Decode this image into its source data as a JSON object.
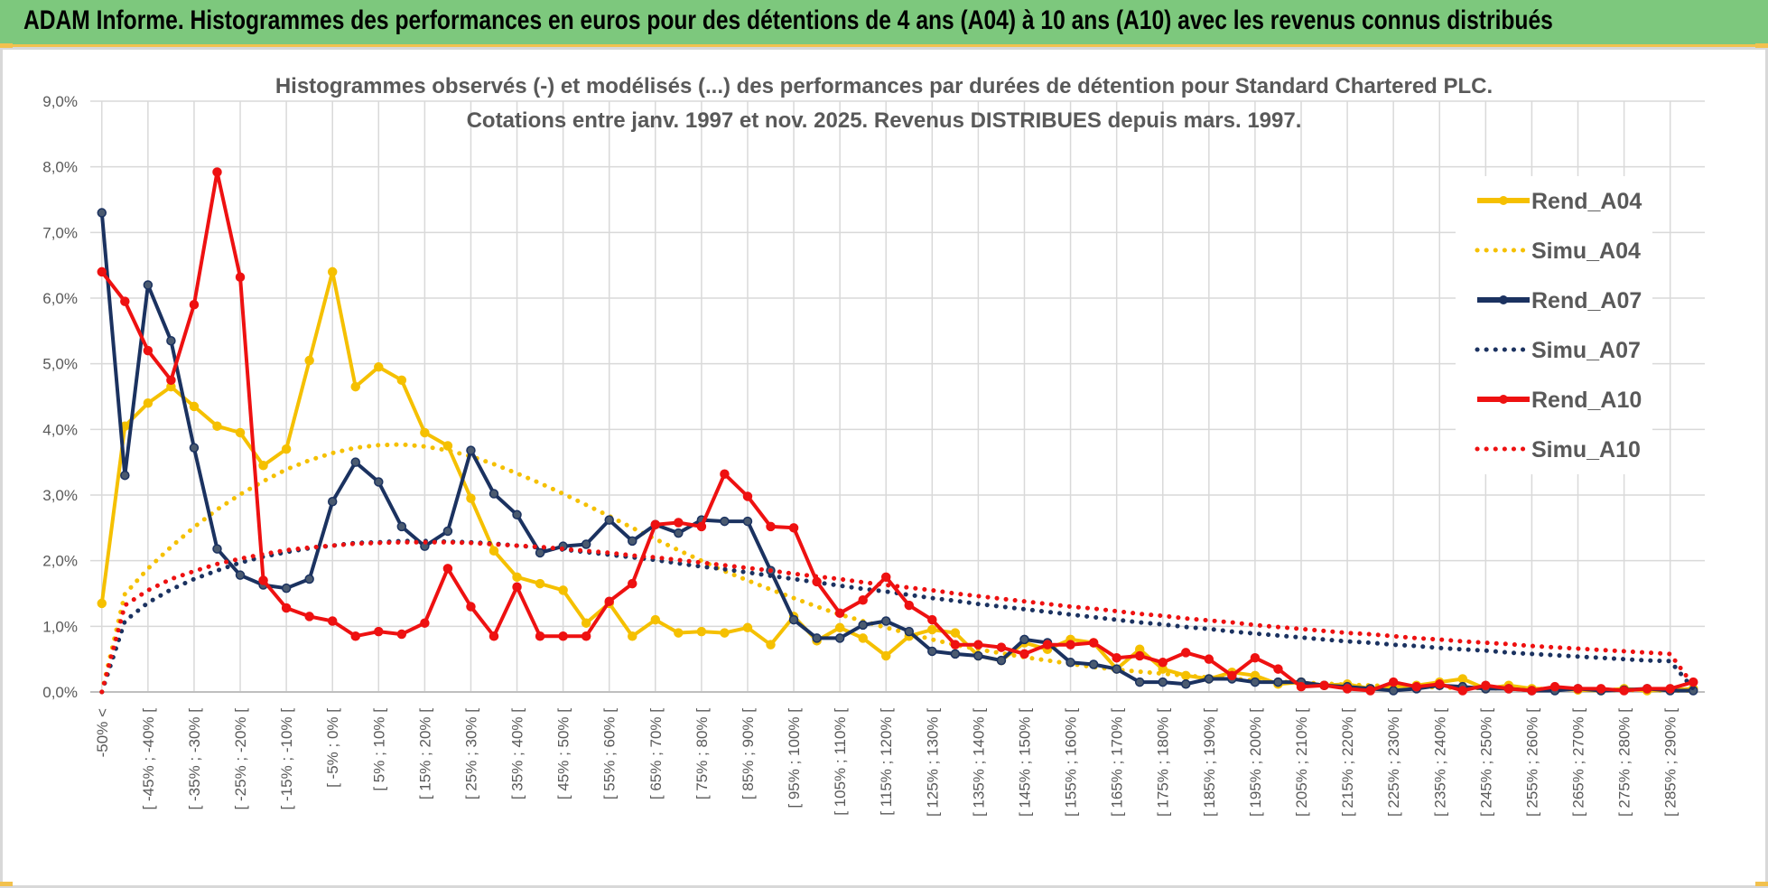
{
  "banner": {
    "title": "ADAM Informe. Histogrammes des performances en euros pour des détentions de 4 ans (A04) à 10 ans (A10) avec les revenus connus distribués"
  },
  "colors": {
    "banner_bg": "#7dc87d",
    "accent": "#f2c14e",
    "a04": "#f5c000",
    "a07": "#1b3260",
    "a10": "#ee1111",
    "grid": "#d9d9d9",
    "text": "#595959"
  },
  "chart_data": {
    "type": "line",
    "title_line1": "Histogrammes observés (-) et modélisés (...) des performances par durées de détention pour Standard Chartered PLC.",
    "title_line2": "Cotations entre janv. 1997 et nov. 2025. Revenus DISTRIBUES depuis mars. 1997.",
    "ylim": [
      0,
      9
    ],
    "yticks": [
      "0,0%",
      "1,0%",
      "2,0%",
      "3,0%",
      "4,0%",
      "5,0%",
      "6,0%",
      "7,0%",
      "8,0%",
      "9,0%"
    ],
    "x_count": 70,
    "xtick_labels": [
      "-50% <",
      "[ -45% ; -40% [",
      "[ -35% ; -30% [",
      "[ -25% ; -20% [",
      "[ -15% ; -10% [",
      "[ -5% ; 0% [",
      "[ 5% ; 10% [",
      "[ 15% ; 20% [",
      "[ 25% ; 30% [",
      "[ 35% ; 40% [",
      "[ 45% ; 50% [",
      "[ 55% ; 60% [",
      "[ 65% ; 70% [",
      "[ 75% ; 80% [",
      "[ 85% ; 90% [",
      "[ 95% ; 100% [",
      "[ 105% ; 110% [",
      "[ 115% ; 120% [",
      "[ 125% ; 130% [",
      "[ 135% ; 140% [",
      "[ 145% ; 150% [",
      "[ 155% ; 160% [",
      "[ 165% ; 170% [",
      "[ 175% ; 180% [",
      "[ 185% ; 190% [",
      "[ 195% ; 200% [",
      "[ 205% ; 210% [",
      "[ 215% ; 220% [",
      "[ 225% ; 230% [",
      "[ 235% ; 240% [",
      "[ 245% ; 250% [",
      "[ 255% ; 260% [",
      "[ 265% ; 270% [",
      "[ 275% ; 280% [",
      "[ 285% ; 290% ["
    ],
    "series": [
      {
        "name": "Rend_A04",
        "style": "solid",
        "color": "#f5c000",
        "values": [
          1.35,
          4.05,
          4.4,
          4.65,
          4.35,
          4.05,
          3.95,
          3.45,
          3.7,
          5.05,
          6.4,
          4.65,
          4.95,
          4.75,
          3.95,
          3.75,
          2.95,
          2.15,
          1.75,
          1.65,
          1.55,
          1.05,
          1.35,
          0.85,
          1.1,
          0.9,
          0.92,
          0.9,
          0.98,
          0.72,
          1.15,
          0.78,
          0.98,
          0.82,
          0.55,
          0.85,
          0.95,
          0.9,
          0.55,
          0.48,
          0.75,
          0.65,
          0.8,
          0.75,
          0.35,
          0.65,
          0.35,
          0.25,
          0.2,
          0.3,
          0.25,
          0.12,
          0.15,
          0.1,
          0.12,
          0.05,
          0.08,
          0.1,
          0.15,
          0.2,
          0.05,
          0.1,
          0.05,
          0.05,
          0.03,
          0.02,
          0.05,
          0.02,
          0.03,
          0.05
        ]
      },
      {
        "name": "Simu_A04",
        "style": "dotted",
        "color": "#f5c000",
        "values": [
          0.0,
          1.49,
          1.88,
          2.21,
          2.51,
          2.78,
          3.01,
          3.21,
          3.39,
          3.53,
          3.64,
          3.72,
          3.76,
          3.77,
          3.74,
          3.68,
          3.59,
          3.47,
          3.33,
          3.18,
          3.02,
          2.85,
          2.68,
          2.5,
          2.33,
          2.16,
          2.0,
          1.84,
          1.7,
          1.56,
          1.43,
          1.3,
          1.18,
          1.08,
          0.98,
          0.89,
          0.8,
          0.72,
          0.65,
          0.59,
          0.53,
          0.48,
          0.43,
          0.38,
          0.34,
          0.31,
          0.28,
          0.25,
          0.22,
          0.2,
          0.18,
          0.16,
          0.14,
          0.13,
          0.11,
          0.1,
          0.09,
          0.08,
          0.07,
          0.06,
          0.06,
          0.05,
          0.05,
          0.04,
          0.04,
          0.03,
          0.03,
          0.03,
          0.02,
          0.02
        ]
      },
      {
        "name": "Rend_A07",
        "style": "solid",
        "color": "#1b3260",
        "values": [
          7.3,
          3.3,
          6.2,
          5.35,
          3.72,
          2.18,
          1.78,
          1.63,
          1.58,
          1.72,
          2.9,
          3.5,
          3.2,
          2.52,
          2.22,
          2.45,
          3.68,
          3.02,
          2.7,
          2.12,
          2.22,
          2.25,
          2.62,
          2.3,
          2.55,
          2.42,
          2.62,
          2.6,
          2.6,
          1.85,
          1.1,
          0.82,
          0.82,
          1.02,
          1.08,
          0.92,
          0.62,
          0.58,
          0.55,
          0.48,
          0.8,
          0.75,
          0.45,
          0.42,
          0.35,
          0.15,
          0.15,
          0.12,
          0.2,
          0.2,
          0.15,
          0.15,
          0.15,
          0.1,
          0.08,
          0.05,
          0.02,
          0.05,
          0.1,
          0.08,
          0.05,
          0.05,
          0.02,
          0.02,
          0.05,
          0.02,
          0.03,
          0.05,
          0.02,
          0.02
        ]
      },
      {
        "name": "Simu_A07",
        "style": "dotted",
        "color": "#1b3260",
        "values": [
          0.0,
          1.08,
          1.36,
          1.56,
          1.72,
          1.85,
          1.97,
          2.06,
          2.13,
          2.19,
          2.23,
          2.27,
          2.28,
          2.3,
          2.3,
          2.29,
          2.28,
          2.26,
          2.23,
          2.2,
          2.17,
          2.13,
          2.09,
          2.05,
          2.01,
          1.96,
          1.91,
          1.87,
          1.82,
          1.77,
          1.72,
          1.67,
          1.62,
          1.57,
          1.53,
          1.48,
          1.43,
          1.39,
          1.34,
          1.3,
          1.26,
          1.22,
          1.18,
          1.14,
          1.1,
          1.06,
          1.03,
          0.99,
          0.96,
          0.92,
          0.89,
          0.86,
          0.83,
          0.8,
          0.77,
          0.75,
          0.72,
          0.7,
          0.67,
          0.65,
          0.63,
          0.6,
          0.58,
          0.56,
          0.54,
          0.52,
          0.5,
          0.48,
          0.47,
          0.05
        ]
      },
      {
        "name": "Rend_A10",
        "style": "solid",
        "color": "#ee1111",
        "values": [
          6.4,
          5.95,
          5.2,
          4.75,
          5.9,
          7.92,
          6.32,
          1.7,
          1.28,
          1.15,
          1.08,
          0.85,
          0.92,
          0.88,
          1.05,
          1.88,
          1.3,
          0.85,
          1.6,
          0.85,
          0.85,
          0.85,
          1.38,
          1.65,
          2.55,
          2.58,
          2.52,
          3.32,
          2.98,
          2.52,
          2.5,
          1.68,
          1.2,
          1.4,
          1.75,
          1.32,
          1.1,
          0.72,
          0.72,
          0.68,
          0.58,
          0.72,
          0.72,
          0.75,
          0.52,
          0.55,
          0.45,
          0.6,
          0.5,
          0.25,
          0.52,
          0.35,
          0.08,
          0.1,
          0.05,
          0.02,
          0.15,
          0.08,
          0.12,
          0.02,
          0.1,
          0.05,
          0.02,
          0.08,
          0.05,
          0.05,
          0.02,
          0.05,
          0.05,
          0.15
        ]
      },
      {
        "name": "Simu_A10",
        "style": "dotted",
        "color": "#ee1111",
        "values": [
          0.0,
          1.32,
          1.55,
          1.72,
          1.84,
          1.95,
          2.03,
          2.1,
          2.16,
          2.2,
          2.23,
          2.26,
          2.27,
          2.28,
          2.28,
          2.28,
          2.27,
          2.25,
          2.23,
          2.21,
          2.18,
          2.15,
          2.12,
          2.08,
          2.05,
          2.01,
          1.97,
          1.93,
          1.89,
          1.85,
          1.8,
          1.76,
          1.72,
          1.67,
          1.63,
          1.59,
          1.55,
          1.5,
          1.46,
          1.42,
          1.38,
          1.34,
          1.3,
          1.27,
          1.23,
          1.19,
          1.16,
          1.12,
          1.09,
          1.06,
          1.02,
          0.99,
          0.96,
          0.93,
          0.9,
          0.88,
          0.85,
          0.82,
          0.8,
          0.77,
          0.75,
          0.73,
          0.7,
          0.68,
          0.66,
          0.64,
          0.62,
          0.6,
          0.58,
          0.1
        ]
      }
    ],
    "legend": [
      "Rend_A04",
      "Simu_A04",
      "Rend_A07",
      "Simu_A07",
      "Rend_A10",
      "Simu_A10"
    ],
    "legend_position": "top-right",
    "grid": true
  }
}
